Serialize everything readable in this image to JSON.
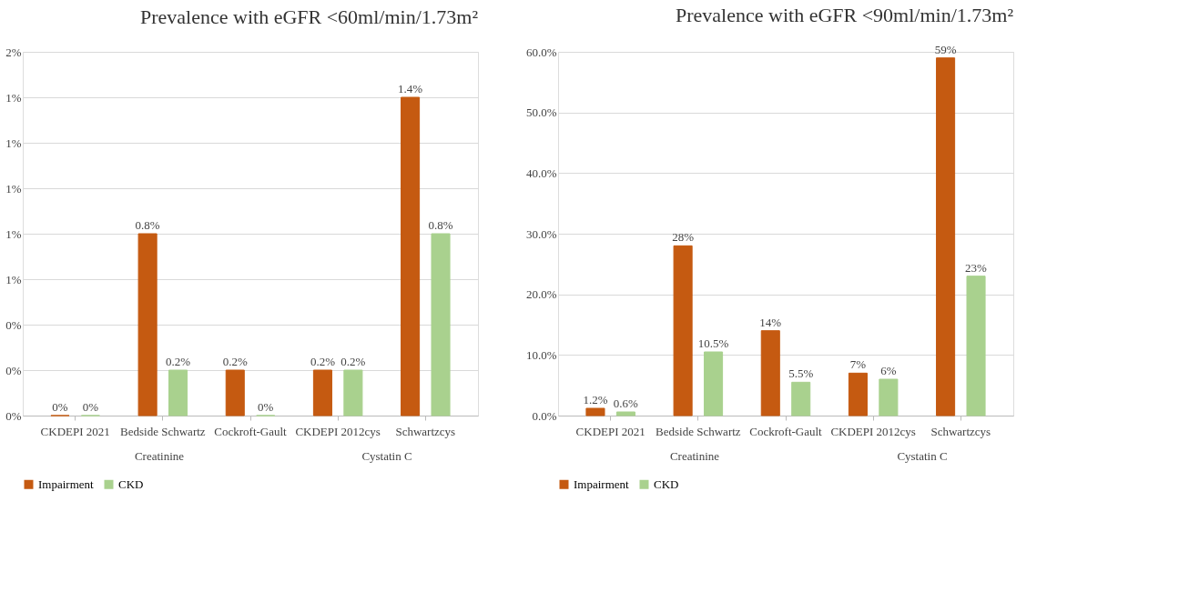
{
  "chart_data": [
    {
      "type": "bar",
      "title": "Prevalence with eGFR <60ml/min/1.73m²",
      "categories": [
        "CKDEPI 2021",
        "Bedside Schwartz",
        "Cockroft-Gault",
        "CKDEPI 2012cys",
        "Schwartzcys"
      ],
      "series": [
        {
          "name": "Impairment",
          "color": "#c55a11",
          "values": [
            0,
            0.8,
            0.2,
            0.2,
            1.4
          ],
          "value_labels": [
            "0%",
            "0.8%",
            "0.2%",
            "0.2%",
            "1.4%"
          ]
        },
        {
          "name": "CKD",
          "color": "#a9d18e",
          "values": [
            0,
            0.2,
            0,
            0.2,
            0.8
          ],
          "value_labels": [
            "0%",
            "0.2%",
            "0%",
            "0.2%",
            "0.8%"
          ]
        }
      ],
      "ylim": [
        0,
        1.6
      ],
      "yticks": [
        {
          "value": 0,
          "label": "0%"
        },
        {
          "value": 0.2,
          "label": "0%"
        },
        {
          "value": 0.4,
          "label": "0%"
        },
        {
          "value": 0.6,
          "label": "1%"
        },
        {
          "value": 0.8,
          "label": "1%"
        },
        {
          "value": 1.0,
          "label": "1%"
        },
        {
          "value": 1.2,
          "label": "1%"
        },
        {
          "value": 1.4,
          "label": "1%"
        },
        {
          "value": 1.6,
          "label": "2%"
        }
      ],
      "annotations": [
        "Creatinine",
        "Cystatin C"
      ],
      "grid": "y",
      "legend": "bottom"
    },
    {
      "type": "bar",
      "title": "Prevalence with eGFR <90ml/min/1.73m²",
      "categories": [
        "CKDEPI 2021",
        "Bedside Schwartz",
        "Cockroft-Gault",
        "CKDEPI 2012cys",
        "Schwartzcys"
      ],
      "series": [
        {
          "name": "Impairment",
          "color": "#c55a11",
          "values": [
            1.2,
            28,
            14,
            7,
            59
          ],
          "value_labels": [
            "1.2%",
            "28%",
            "14%",
            "7%",
            "59%"
          ]
        },
        {
          "name": "CKD",
          "color": "#a9d18e",
          "values": [
            0.6,
            10.5,
            5.5,
            6,
            23
          ],
          "value_labels": [
            "0.6%",
            "10.5%",
            "5.5%",
            "6%",
            "23%"
          ]
        }
      ],
      "ylim": [
        0,
        60
      ],
      "yticks": [
        {
          "value": 0,
          "label": "0.0%"
        },
        {
          "value": 10,
          "label": "10.0%"
        },
        {
          "value": 20,
          "label": "20.0%"
        },
        {
          "value": 30,
          "label": "30.0%"
        },
        {
          "value": 40,
          "label": "40.0%"
        },
        {
          "value": 50,
          "label": "50.0%"
        },
        {
          "value": 60,
          "label": "60.0%"
        }
      ],
      "annotations": [
        "Creatinine",
        "Cystatin C"
      ],
      "grid": "y",
      "legend": "bottom"
    }
  ]
}
